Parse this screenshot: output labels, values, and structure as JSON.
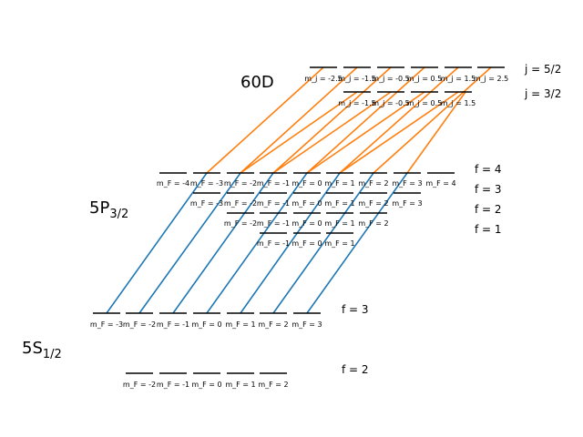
{
  "states": {
    "ground": {
      "base": "5S",
      "sub": "1/2"
    },
    "intermediate": {
      "base": "5P",
      "sub": "3/2"
    },
    "rydberg": {
      "label": "60D"
    }
  },
  "ground_f2": {
    "f_label": "f = 2",
    "m_labels": [
      "m_F = -2",
      "m_F = -1",
      "m_F = 0",
      "m_F = 1",
      "m_F = 2"
    ]
  },
  "ground_f3": {
    "f_label": "f = 3",
    "m_labels": [
      "m_F = -3",
      "m_F = -2",
      "m_F = -1",
      "m_F = 0",
      "m_F = 1",
      "m_F = 2",
      "m_F = 3"
    ]
  },
  "p_f1": {
    "f_label": "f = 1",
    "m_labels": [
      "m_F = -1",
      "m_F = 0",
      "m_F = 1"
    ]
  },
  "p_f2": {
    "f_label": "f = 2",
    "m_labels": [
      "m_F = -2",
      "m_F = -1",
      "m_F = 0",
      "m_F = 1",
      "m_F = 2"
    ]
  },
  "p_f3": {
    "f_label": "f = 3",
    "m_labels": [
      "m_F = -3",
      "m_F = -2",
      "m_F = -1",
      "m_F = 0",
      "m_F = 1",
      "m_F = 2",
      "m_F = 3"
    ]
  },
  "p_f4": {
    "f_label": "f = 4",
    "m_labels": [
      "m_F = -4",
      "m_F = -3",
      "m_F = -2",
      "m_F = -1",
      "m_F = 0",
      "m_F = 1",
      "m_F = 2",
      "m_F = 3",
      "m_F = 4"
    ]
  },
  "d_j32": {
    "j_label": "j = 3/2",
    "m_labels": [
      "m_j = -1.5",
      "m_j = -0.5",
      "m_j = 0.5",
      "m_j = 1.5"
    ]
  },
  "d_j52": {
    "j_label": "j = 5/2",
    "m_labels": [
      "m_j = -2.5",
      "m_j = -1.5",
      "m_j = -0.5",
      "m_j = 0.5",
      "m_j = 1.5",
      "m_j = 2.5"
    ]
  },
  "transitions": {
    "blue": {
      "color": "#1f77b4"
    },
    "orange": {
      "color": "#ff7f0e"
    }
  }
}
